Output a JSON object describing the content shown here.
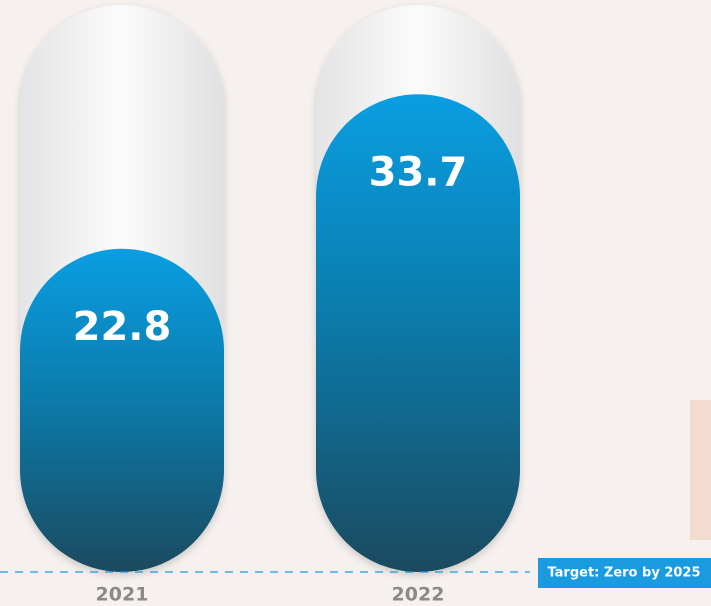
{
  "chart_data": {
    "type": "bar",
    "categories": [
      "2021",
      "2022"
    ],
    "values": [
      22.8,
      33.7
    ],
    "color": "#0a9ee2",
    "ylim": [
      0,
      40
    ],
    "annotation": "Target: Zero by 2025"
  }
}
